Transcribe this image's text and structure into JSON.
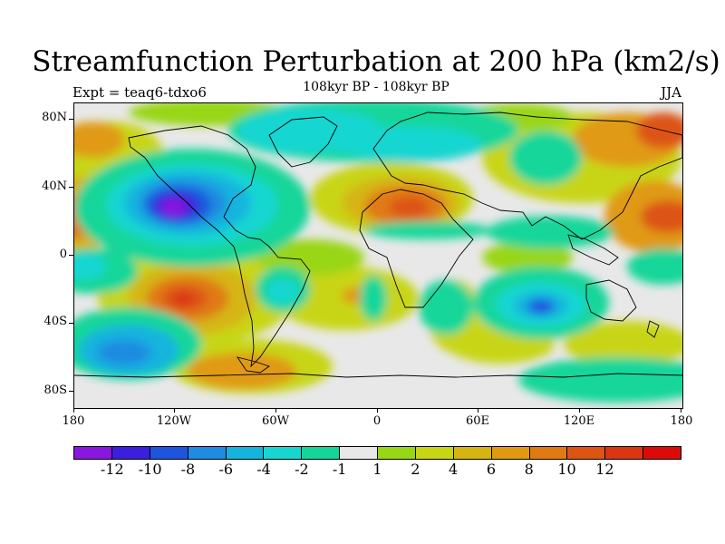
{
  "title": "Streamfunction Perturbation at 200 hPa (km2/s)",
  "subtitle": "108kyr BP - 108kyr BP",
  "left_label": "Expt = teaq6-tdxo6",
  "right_label": "JJA",
  "lat_ticks": [
    "80N",
    "40N",
    "0",
    "40S",
    "80S"
  ],
  "lon_ticks": [
    "180",
    "120W",
    "60W",
    "0",
    "60E",
    "120E",
    "180"
  ],
  "colorbar": {
    "colors": [
      "#8a17e0",
      "#3c1fdc",
      "#1f55dd",
      "#1f8ce1",
      "#14b4de",
      "#17d6d1",
      "#14d69a",
      "#e8e8e8",
      "#99d615",
      "#c8d514",
      "#d6b512",
      "#e09a12",
      "#e07a12",
      "#dd5512",
      "#dc3512",
      "#dd0a0a"
    ],
    "labels": [
      "-12",
      "-10",
      "-8",
      "-6",
      "-4",
      "-2",
      "-1",
      "1",
      "2",
      "4",
      "6",
      "8",
      "10",
      "12"
    ]
  }
}
